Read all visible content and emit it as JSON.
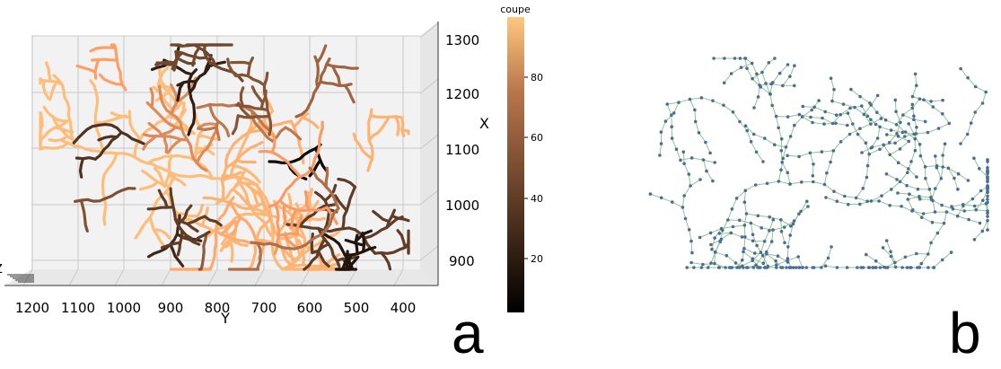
{
  "panel_a": {
    "label": "a",
    "x_axis_label": "X",
    "y_axis_label": "Y",
    "z_axis_label": "Z",
    "y_ticks": [
      "1200",
      "1100",
      "1000",
      "900",
      "800",
      "700",
      "600",
      "500",
      "400"
    ],
    "x_ticks": [
      "1300",
      "1200",
      "1100",
      "1000",
      "900"
    ],
    "colorbar": {
      "title": "coupe",
      "ticks": [
        "80",
        "60",
        "40",
        "20"
      ],
      "colormap": "copper",
      "range": [
        0,
        100
      ]
    }
  },
  "panel_b": {
    "label": "b",
    "node_color": "#4a6d96",
    "edge_color": "#8fc48f"
  }
}
